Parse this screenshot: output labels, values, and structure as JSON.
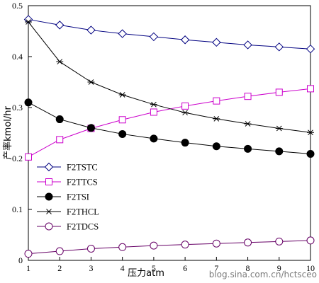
{
  "chart_data": {
    "type": "line",
    "title": "",
    "xlabel": "压力atm",
    "ylabel": "产率kmol/hr",
    "x": [
      1,
      2,
      3,
      4,
      5,
      6,
      7,
      8,
      9,
      10
    ],
    "xlim": [
      1,
      10
    ],
    "ylim": [
      0,
      0.5
    ],
    "xticks": [
      "1",
      "2",
      "3",
      "4",
      "5",
      "6",
      "7",
      "8",
      "9",
      "10"
    ],
    "yticks": [
      "0",
      "0.1",
      "0.2",
      "0.3",
      "0.4",
      "0.5"
    ],
    "grid": false,
    "legend_position": "bottom-left",
    "series": [
      {
        "name": "F2TSTC",
        "color": "#000080",
        "marker": "diamond",
        "values": [
          0.473,
          0.462,
          0.452,
          0.445,
          0.439,
          0.433,
          0.428,
          0.423,
          0.419,
          0.415
        ]
      },
      {
        "name": "F2TTCS",
        "color": "#cc00cc",
        "marker": "square",
        "values": [
          0.203,
          0.237,
          0.259,
          0.276,
          0.291,
          0.303,
          0.313,
          0.322,
          0.33,
          0.337
        ]
      },
      {
        "name": "F2TSI",
        "color": "#000000",
        "marker": "filled-circle",
        "values": [
          0.31,
          0.277,
          0.26,
          0.248,
          0.239,
          0.231,
          0.224,
          0.219,
          0.214,
          0.209
        ]
      },
      {
        "name": "F2THCL",
        "color": "#000000",
        "marker": "star",
        "values": [
          0.468,
          0.39,
          0.35,
          0.325,
          0.306,
          0.29,
          0.278,
          0.268,
          0.259,
          0.251
        ]
      },
      {
        "name": "F2TDCS",
        "color": "#660066",
        "marker": "circle",
        "values": [
          0.013,
          0.018,
          0.023,
          0.026,
          0.029,
          0.031,
          0.033,
          0.035,
          0.037,
          0.039
        ]
      }
    ]
  },
  "watermark": "blog.sina.com.cn/hctsceo"
}
